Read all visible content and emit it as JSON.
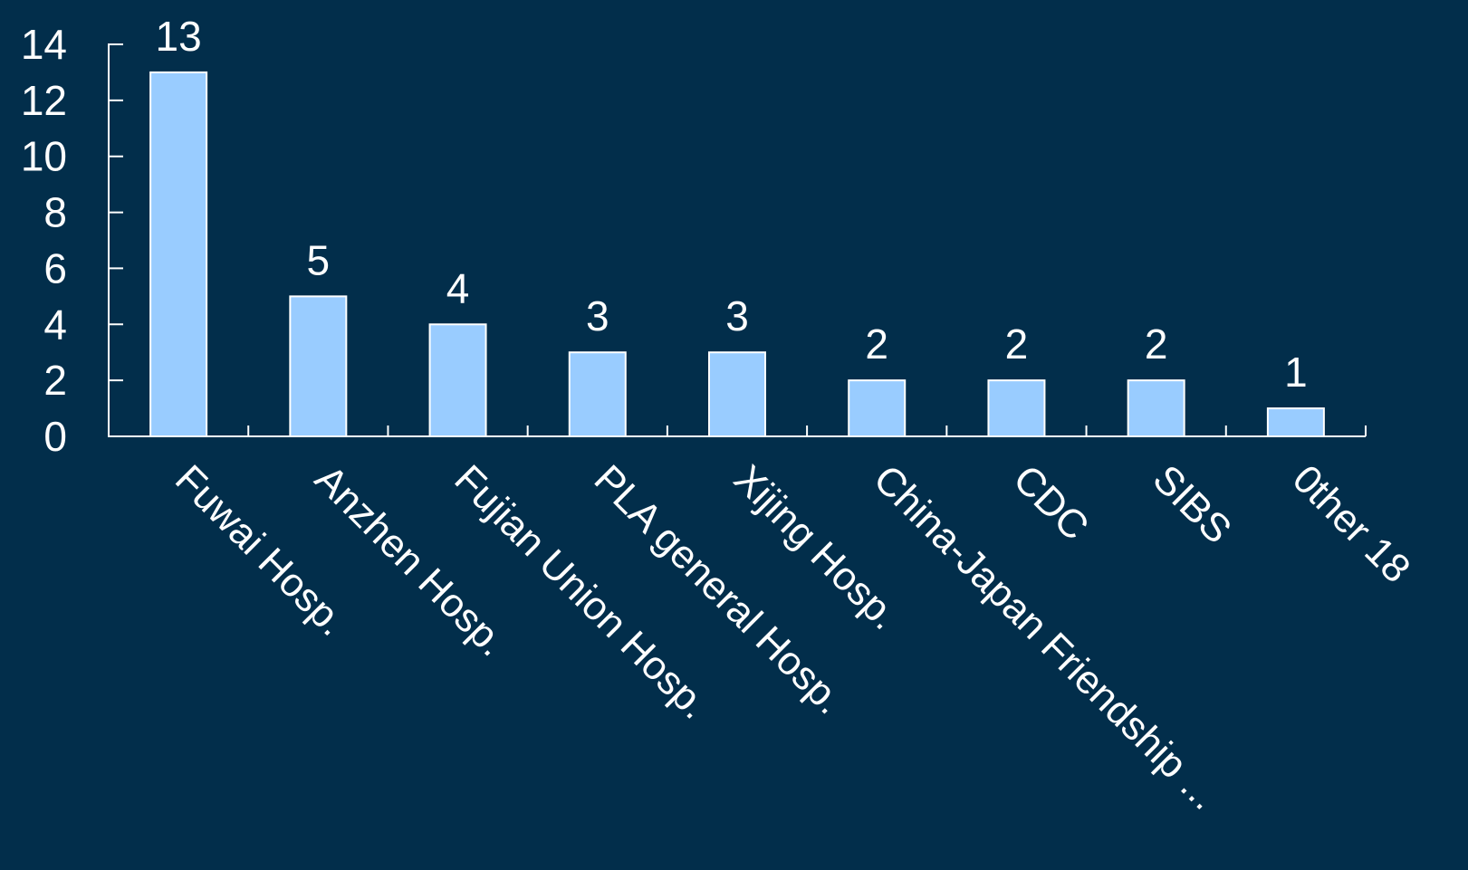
{
  "colors": {
    "background": "#022e4b",
    "bar_fill": "#99ccff",
    "bar_stroke": "#ffffff",
    "axis": "#ffffff",
    "text": "#ffffff"
  },
  "chart_data": {
    "type": "bar",
    "title": "",
    "xlabel": "",
    "ylabel": "",
    "ylim": [
      0,
      14
    ],
    "yticks": [
      0,
      2,
      4,
      6,
      8,
      10,
      12,
      14
    ],
    "grid": false,
    "categories": [
      "Fuwai Hosp.",
      "Anzhen Hosp.",
      "Fujian Union Hosp.",
      "PLA general Hosp.",
      "Xijing Hosp.",
      "China-Japan Friendship ...",
      "CDC",
      "SIBS",
      "0ther 18"
    ],
    "values": [
      13,
      5,
      4,
      3,
      3,
      2,
      2,
      2,
      1
    ],
    "data_labels": [
      "13",
      "5",
      "4",
      "3",
      "3",
      "2",
      "2",
      "2",
      "1"
    ],
    "x_label_rotation_deg": 45
  }
}
